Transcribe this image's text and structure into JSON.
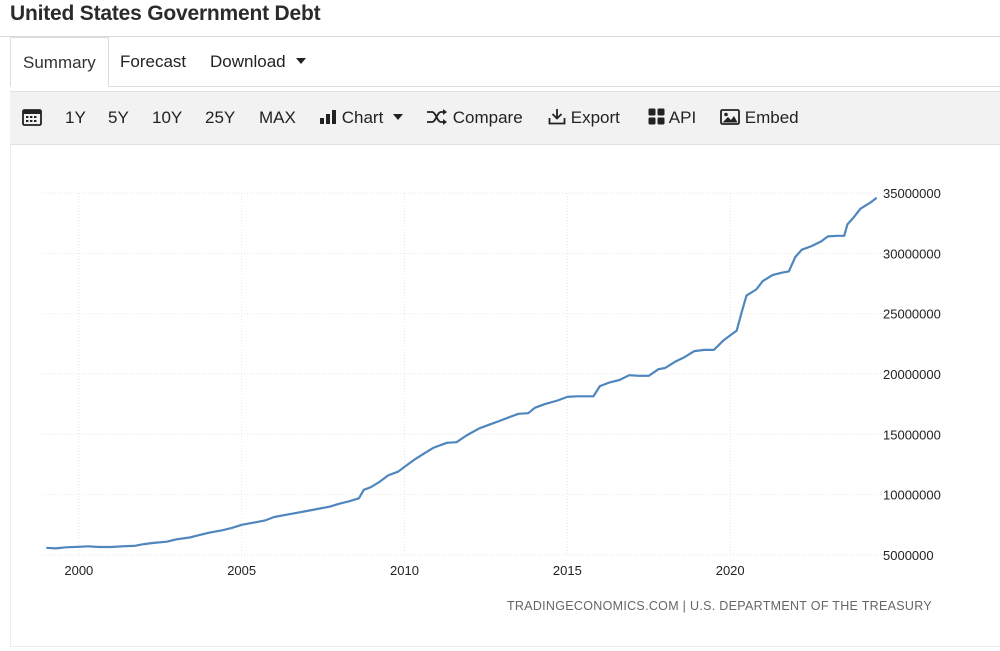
{
  "page": {
    "title": "United States Government Debt"
  },
  "tabs": [
    {
      "label": "Summary",
      "active": true
    },
    {
      "label": "Forecast",
      "active": false
    },
    {
      "label": "Download",
      "active": false
    }
  ],
  "toolbar": {
    "calendar_icon": "calendar-icon",
    "ranges": [
      "1Y",
      "5Y",
      "10Y",
      "25Y",
      "MAX"
    ],
    "chart_label": "Chart",
    "compare_label": "Compare",
    "export_label": "Export",
    "api_label": "API",
    "embed_label": "Embed"
  },
  "source": "TRADINGECONOMICS.COM | U.S. DEPARTMENT OF THE TREASURY",
  "colors": {
    "line": "#4f86bd",
    "grid": "#e6e6e6",
    "toolbar_bg": "#f2f2f2"
  },
  "chart_data": {
    "type": "line",
    "title": "",
    "xlabel": "",
    "ylabel": "",
    "x_ticks": [
      "2000",
      "2005",
      "2010",
      "2015",
      "2020"
    ],
    "y_ticks": [
      "5000000",
      "10000000",
      "15000000",
      "20000000",
      "25000000",
      "30000000",
      "35000000"
    ],
    "xlim": [
      1998.9,
      2024.6
    ],
    "ylim": [
      5000000,
      35000000
    ],
    "y_axis_side": "right",
    "grid": true,
    "series": [
      {
        "name": "",
        "points": [
          [
            1999.0,
            5600000
          ],
          [
            1999.3,
            5550000
          ],
          [
            1999.6,
            5640000
          ],
          [
            2000.0,
            5680000
          ],
          [
            2000.3,
            5720000
          ],
          [
            2000.6,
            5660000
          ],
          [
            2001.0,
            5660000
          ],
          [
            2001.4,
            5730000
          ],
          [
            2001.7,
            5750000
          ],
          [
            2002.0,
            5900000
          ],
          [
            2002.3,
            6000000
          ],
          [
            2002.7,
            6100000
          ],
          [
            2003.0,
            6300000
          ],
          [
            2003.4,
            6450000
          ],
          [
            2003.7,
            6650000
          ],
          [
            2004.0,
            6850000
          ],
          [
            2004.4,
            7050000
          ],
          [
            2004.7,
            7250000
          ],
          [
            2005.0,
            7500000
          ],
          [
            2005.4,
            7700000
          ],
          [
            2005.7,
            7850000
          ],
          [
            2006.0,
            8150000
          ],
          [
            2006.4,
            8350000
          ],
          [
            2006.7,
            8500000
          ],
          [
            2007.0,
            8650000
          ],
          [
            2007.4,
            8850000
          ],
          [
            2007.7,
            9000000
          ],
          [
            2008.0,
            9250000
          ],
          [
            2008.3,
            9450000
          ],
          [
            2008.6,
            9700000
          ],
          [
            2008.75,
            10400000
          ],
          [
            2008.95,
            10600000
          ],
          [
            2009.2,
            11000000
          ],
          [
            2009.5,
            11600000
          ],
          [
            2009.8,
            11900000
          ],
          [
            2010.0,
            12300000
          ],
          [
            2010.3,
            12900000
          ],
          [
            2010.6,
            13400000
          ],
          [
            2010.9,
            13900000
          ],
          [
            2011.3,
            14300000
          ],
          [
            2011.6,
            14350000
          ],
          [
            2011.9,
            14900000
          ],
          [
            2012.3,
            15500000
          ],
          [
            2012.6,
            15800000
          ],
          [
            2012.9,
            16100000
          ],
          [
            2013.2,
            16400000
          ],
          [
            2013.5,
            16700000
          ],
          [
            2013.8,
            16750000
          ],
          [
            2014.0,
            17200000
          ],
          [
            2014.3,
            17500000
          ],
          [
            2014.7,
            17800000
          ],
          [
            2015.0,
            18100000
          ],
          [
            2015.3,
            18150000
          ],
          [
            2015.6,
            18150000
          ],
          [
            2015.8,
            18150000
          ],
          [
            2016.0,
            19000000
          ],
          [
            2016.3,
            19300000
          ],
          [
            2016.6,
            19500000
          ],
          [
            2016.9,
            19900000
          ],
          [
            2017.2,
            19850000
          ],
          [
            2017.5,
            19850000
          ],
          [
            2017.8,
            20400000
          ],
          [
            2018.0,
            20500000
          ],
          [
            2018.3,
            21000000
          ],
          [
            2018.6,
            21400000
          ],
          [
            2018.9,
            21900000
          ],
          [
            2019.2,
            22000000
          ],
          [
            2019.5,
            22000000
          ],
          [
            2019.8,
            22800000
          ],
          [
            2020.0,
            23200000
          ],
          [
            2020.2,
            23600000
          ],
          [
            2020.35,
            25100000
          ],
          [
            2020.5,
            26500000
          ],
          [
            2020.8,
            27000000
          ],
          [
            2021.0,
            27700000
          ],
          [
            2021.3,
            28200000
          ],
          [
            2021.6,
            28400000
          ],
          [
            2021.8,
            28500000
          ],
          [
            2022.0,
            29700000
          ],
          [
            2022.2,
            30300000
          ],
          [
            2022.5,
            30600000
          ],
          [
            2022.8,
            31000000
          ],
          [
            2023.0,
            31400000
          ],
          [
            2023.3,
            31450000
          ],
          [
            2023.5,
            31450000
          ],
          [
            2023.6,
            32400000
          ],
          [
            2023.8,
            33000000
          ],
          [
            2024.0,
            33700000
          ],
          [
            2024.3,
            34200000
          ],
          [
            2024.5,
            34600000
          ]
        ]
      }
    ]
  }
}
